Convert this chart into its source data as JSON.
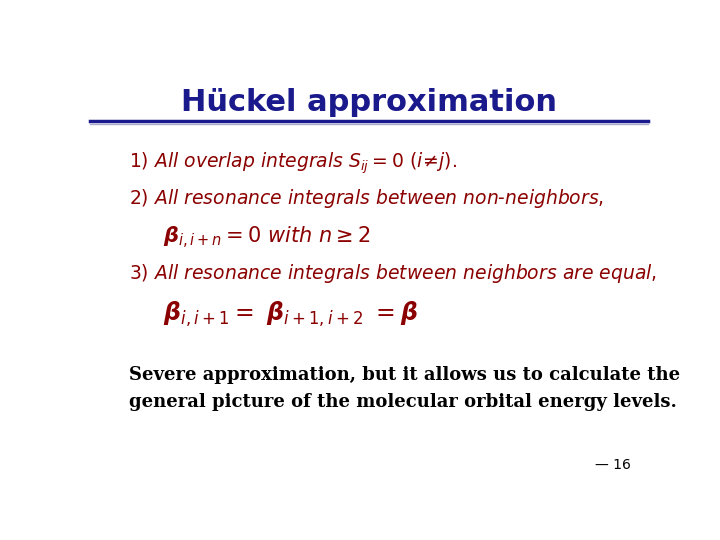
{
  "title": "Hückel approximation",
  "title_color": "#1a1a8c",
  "title_fontsize": 22,
  "bg_color": "#ffffff",
  "red_color": "#8b0000",
  "black_color": "#000000",
  "footer_text": "— 16",
  "header_line_color": "#1a1a8c",
  "header_line_color2": "#aaaacc"
}
